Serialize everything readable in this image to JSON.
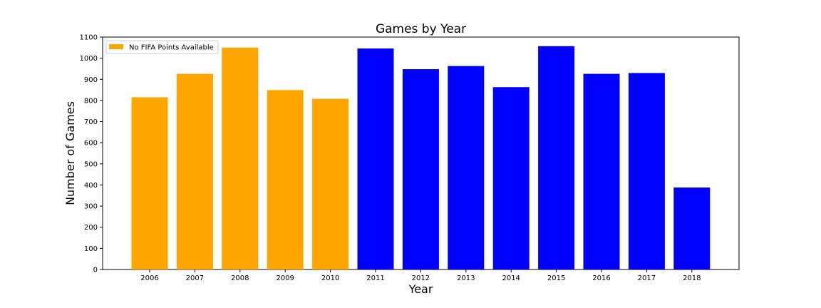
{
  "chart_data": {
    "type": "bar",
    "title": "Games by Year",
    "xlabel": "Year",
    "ylabel": "Number of Games",
    "categories": [
      "2006",
      "2007",
      "2008",
      "2009",
      "2010",
      "2011",
      "2012",
      "2013",
      "2014",
      "2015",
      "2016",
      "2017",
      "2018"
    ],
    "values": [
      815,
      926,
      1050,
      849,
      808,
      1046,
      948,
      963,
      863,
      1057,
      926,
      930,
      388
    ],
    "bar_colors": [
      "#FFA500",
      "#FFA500",
      "#FFA500",
      "#FFA500",
      "#FFA500",
      "#0000FF",
      "#0000FF",
      "#0000FF",
      "#0000FF",
      "#0000FF",
      "#0000FF",
      "#0000FF",
      "#0000FF"
    ],
    "ylim": [
      0,
      1100
    ],
    "yticks": [
      0,
      100,
      200,
      300,
      400,
      500,
      600,
      700,
      800,
      900,
      1000,
      1100
    ],
    "grid": false,
    "legend": {
      "placement": "top-left",
      "entries": [
        {
          "label": "No FIFA Points Available",
          "color": "#FFA500"
        }
      ]
    }
  }
}
